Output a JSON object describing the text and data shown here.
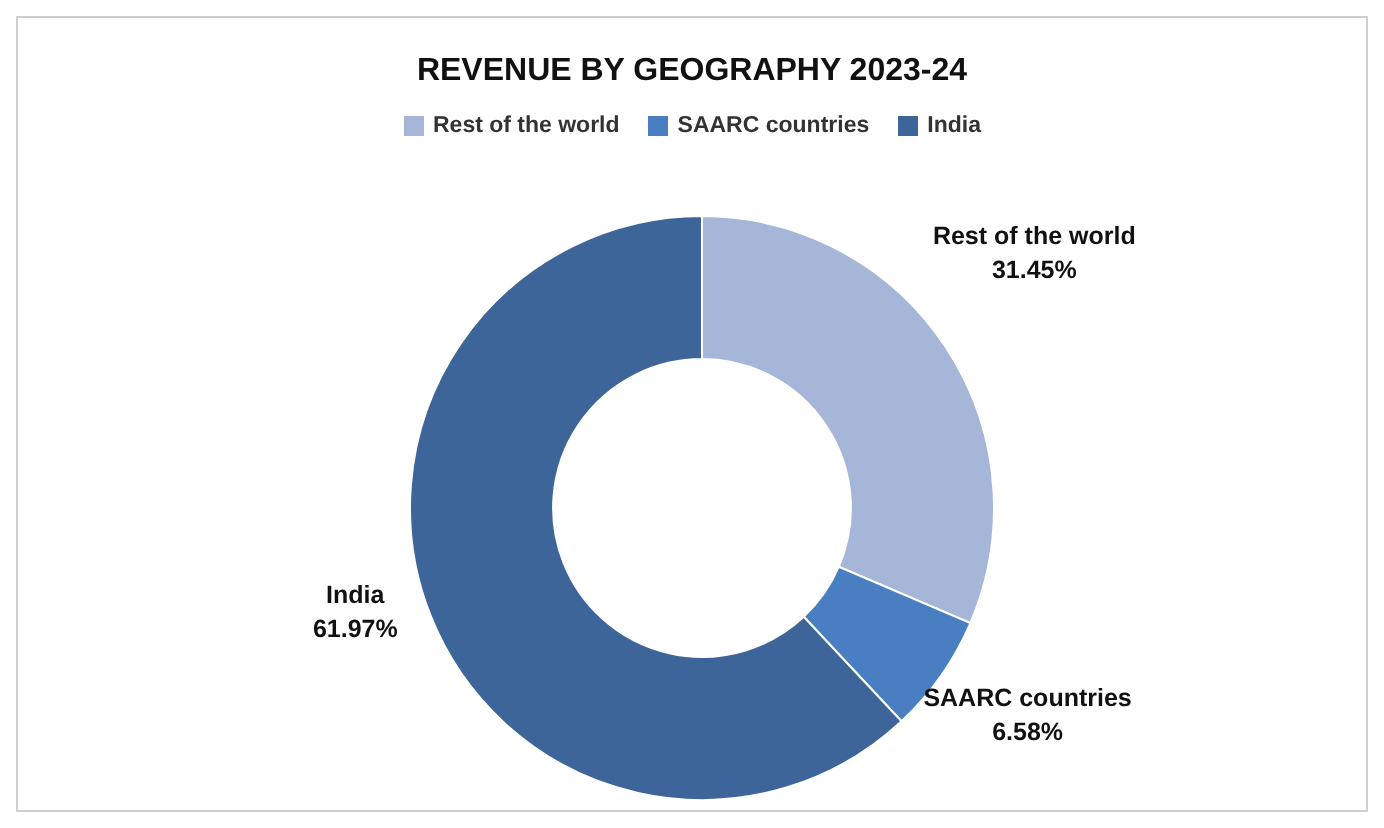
{
  "chart_data": {
    "type": "donut",
    "title": "REVENUE BY GEOGRAPHY 2023-24",
    "categories": [
      "Rest of the world",
      "SAARC countries",
      "India"
    ],
    "values": [
      31.45,
      6.58,
      61.97
    ],
    "value_labels": [
      "31.45%",
      "6.58%",
      "61.97%"
    ],
    "colors": [
      "#a6b6d8",
      "#4a7ec2",
      "#3e6599"
    ],
    "legend": "top"
  }
}
